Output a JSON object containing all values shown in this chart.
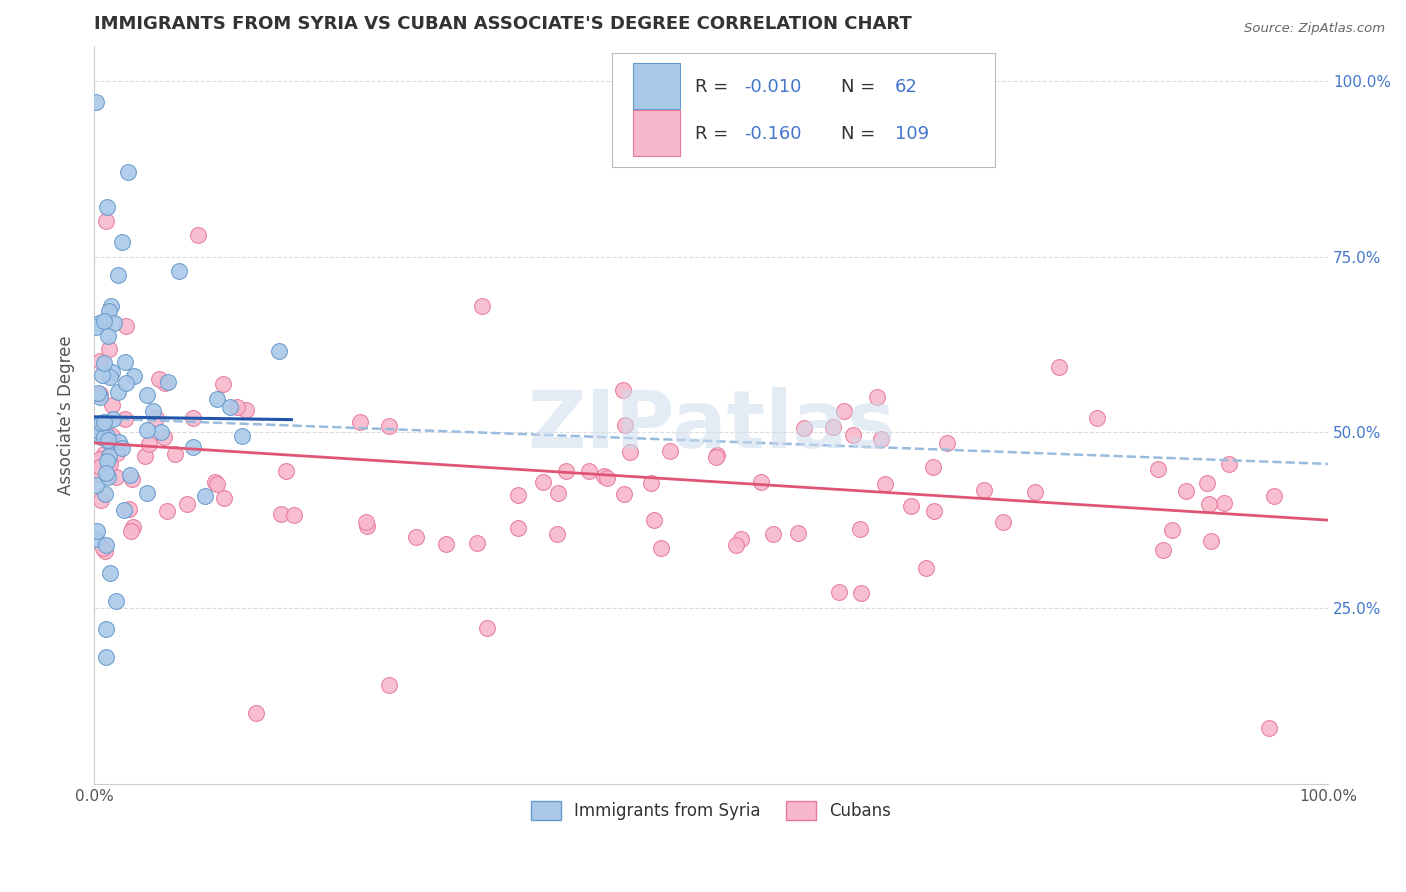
{
  "title": "IMMIGRANTS FROM SYRIA VS CUBAN ASSOCIATE'S DEGREE CORRELATION CHART",
  "source_text": "Source: ZipAtlas.com",
  "ylabel": "Associate’s Degree",
  "xlim": [
    0.0,
    1.0
  ],
  "ylim": [
    0.0,
    1.05
  ],
  "syria_color": "#aac9e8",
  "syria_edge_color": "#6699cc",
  "cuba_color": "#f7b8cb",
  "cuba_edge_color": "#e8799a",
  "syria_trend_color": "#2255aa",
  "cuba_trend_color": "#e05575",
  "syria_dash_color": "#99bbdd",
  "background_color": "#ffffff",
  "grid_color": "#dddddd",
  "watermark": "ZIPatlas",
  "legend_label_color": "#333333",
  "legend_value_color": "#4477cc"
}
